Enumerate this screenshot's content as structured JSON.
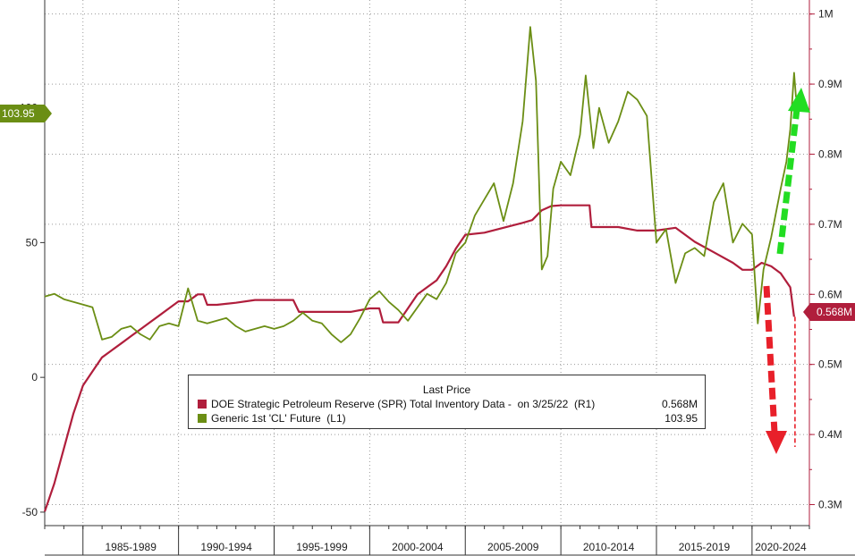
{
  "chart_data": {
    "type": "line",
    "title": "",
    "legend": {
      "title": "Last Price",
      "placement": "bottom-center",
      "entries": [
        {
          "name": "DOE Strategic Petroleum Reserve (SPR) Total Inventory Data -  on 3/25/22  (R1)",
          "value": "0.568M"
        },
        {
          "name": "Generic 1st 'CL' Future  (L1)",
          "value": "103.95"
        }
      ]
    },
    "x_ticks": [
      "1985-1989",
      "1990-1994",
      "1995-1999",
      "2000-2004",
      "2005-2009",
      "2010-2014",
      "2015-2019",
      "2020-2024"
    ],
    "x_range": [
      1983,
      2023
    ],
    "y_left": {
      "range": [
        -55,
        140
      ],
      "ticks": [
        -50,
        0,
        50,
        100
      ]
    },
    "y_right": {
      "range": [
        0.27,
        1.02
      ],
      "ticks": [
        "0.3M",
        "0.4M",
        "0.5M",
        "0.6M",
        "0.7M",
        "0.8M",
        "0.9M",
        "1M"
      ],
      "tick_values": [
        0.3,
        0.4,
        0.5,
        0.6,
        0.7,
        0.8,
        0.9,
        1.0
      ]
    },
    "grid": true,
    "series": [
      {
        "name": "DOE Strategic Petroleum Reserve (SPR) Total Inventory Data -  on 3/25/22  (R1)",
        "axis": "right",
        "color": "#b01e3c",
        "last_label": "0.568M",
        "points": [
          [
            1983.0,
            0.29
          ],
          [
            1983.5,
            0.33
          ],
          [
            1984.0,
            0.38
          ],
          [
            1984.5,
            0.43
          ],
          [
            1985.0,
            0.47
          ],
          [
            1985.5,
            0.49
          ],
          [
            1986.0,
            0.51
          ],
          [
            1986.5,
            0.52
          ],
          [
            1987.0,
            0.53
          ],
          [
            1987.5,
            0.54
          ],
          [
            1988.0,
            0.55
          ],
          [
            1988.5,
            0.56
          ],
          [
            1989.0,
            0.57
          ],
          [
            1989.5,
            0.58
          ],
          [
            1990.0,
            0.59
          ],
          [
            1990.5,
            0.59
          ],
          [
            1991.0,
            0.6
          ],
          [
            1991.3,
            0.6
          ],
          [
            1991.5,
            0.585
          ],
          [
            1992.0,
            0.585
          ],
          [
            1993.0,
            0.588
          ],
          [
            1994.0,
            0.592
          ],
          [
            1995.0,
            0.592
          ],
          [
            1996.0,
            0.592
          ],
          [
            1996.3,
            0.575
          ],
          [
            1997.0,
            0.575
          ],
          [
            1998.0,
            0.575
          ],
          [
            1999.0,
            0.575
          ],
          [
            2000.0,
            0.58
          ],
          [
            2000.5,
            0.58
          ],
          [
            2000.7,
            0.56
          ],
          [
            2001.5,
            0.56
          ],
          [
            2002.0,
            0.58
          ],
          [
            2002.5,
            0.6
          ],
          [
            2003.0,
            0.61
          ],
          [
            2003.5,
            0.62
          ],
          [
            2004.0,
            0.64
          ],
          [
            2004.5,
            0.665
          ],
          [
            2005.0,
            0.685
          ],
          [
            2006.0,
            0.688
          ],
          [
            2007.0,
            0.695
          ],
          [
            2008.0,
            0.702
          ],
          [
            2008.5,
            0.706
          ],
          [
            2009.0,
            0.72
          ],
          [
            2009.5,
            0.726
          ],
          [
            2010.0,
            0.727
          ],
          [
            2011.0,
            0.727
          ],
          [
            2011.5,
            0.727
          ],
          [
            2011.6,
            0.696
          ],
          [
            2013.0,
            0.696
          ],
          [
            2014.0,
            0.691
          ],
          [
            2015.0,
            0.691
          ],
          [
            2016.0,
            0.695
          ],
          [
            2017.0,
            0.675
          ],
          [
            2018.0,
            0.66
          ],
          [
            2019.0,
            0.645
          ],
          [
            2019.5,
            0.635
          ],
          [
            2020.0,
            0.635
          ],
          [
            2020.5,
            0.645
          ],
          [
            2021.0,
            0.64
          ],
          [
            2021.5,
            0.63
          ],
          [
            2022.0,
            0.61
          ],
          [
            2022.2,
            0.568
          ]
        ]
      },
      {
        "name": "Generic 1st 'CL' Future  (L1)",
        "axis": "left",
        "color": "#6b8e14",
        "last_label": "103.95",
        "points": [
          [
            1983.0,
            30
          ],
          [
            1983.5,
            31
          ],
          [
            1984.0,
            29
          ],
          [
            1984.5,
            28
          ],
          [
            1985.0,
            27
          ],
          [
            1985.5,
            26
          ],
          [
            1986.0,
            14
          ],
          [
            1986.5,
            15
          ],
          [
            1987.0,
            18
          ],
          [
            1987.5,
            19
          ],
          [
            1988.0,
            16
          ],
          [
            1988.5,
            14
          ],
          [
            1989.0,
            19
          ],
          [
            1989.5,
            20
          ],
          [
            1990.0,
            19
          ],
          [
            1990.5,
            33
          ],
          [
            1991.0,
            21
          ],
          [
            1991.5,
            20
          ],
          [
            1992.0,
            21
          ],
          [
            1992.5,
            22
          ],
          [
            1993.0,
            19
          ],
          [
            1993.5,
            17
          ],
          [
            1994.0,
            18
          ],
          [
            1994.5,
            19
          ],
          [
            1995.0,
            18
          ],
          [
            1995.5,
            19
          ],
          [
            1996.0,
            21
          ],
          [
            1996.5,
            24
          ],
          [
            1997.0,
            21
          ],
          [
            1997.5,
            20
          ],
          [
            1998.0,
            16
          ],
          [
            1998.5,
            13
          ],
          [
            1999.0,
            16
          ],
          [
            1999.5,
            22
          ],
          [
            2000.0,
            29
          ],
          [
            2000.5,
            32
          ],
          [
            2001.0,
            28
          ],
          [
            2001.5,
            25
          ],
          [
            2002.0,
            21
          ],
          [
            2002.5,
            26
          ],
          [
            2003.0,
            31
          ],
          [
            2003.5,
            29
          ],
          [
            2004.0,
            35
          ],
          [
            2004.5,
            46
          ],
          [
            2005.0,
            50
          ],
          [
            2005.5,
            60
          ],
          [
            2006.0,
            66
          ],
          [
            2006.5,
            72
          ],
          [
            2007.0,
            58
          ],
          [
            2007.5,
            72
          ],
          [
            2008.0,
            95
          ],
          [
            2008.4,
            130
          ],
          [
            2008.7,
            110
          ],
          [
            2009.0,
            40
          ],
          [
            2009.3,
            45
          ],
          [
            2009.6,
            70
          ],
          [
            2010.0,
            80
          ],
          [
            2010.5,
            75
          ],
          [
            2011.0,
            90
          ],
          [
            2011.3,
            112
          ],
          [
            2011.7,
            85
          ],
          [
            2012.0,
            100
          ],
          [
            2012.5,
            87
          ],
          [
            2013.0,
            95
          ],
          [
            2013.5,
            106
          ],
          [
            2014.0,
            103
          ],
          [
            2014.5,
            97
          ],
          [
            2015.0,
            50
          ],
          [
            2015.5,
            55
          ],
          [
            2016.0,
            35
          ],
          [
            2016.5,
            46
          ],
          [
            2017.0,
            48
          ],
          [
            2017.5,
            45
          ],
          [
            2018.0,
            65
          ],
          [
            2018.5,
            72
          ],
          [
            2019.0,
            50
          ],
          [
            2019.5,
            57
          ],
          [
            2020.0,
            53
          ],
          [
            2020.3,
            20
          ],
          [
            2020.6,
            40
          ],
          [
            2021.0,
            52
          ],
          [
            2021.5,
            70
          ],
          [
            2021.8,
            80
          ],
          [
            2022.0,
            92
          ],
          [
            2022.2,
            113
          ],
          [
            2022.3,
            103.95
          ]
        ]
      }
    ],
    "annotations": [
      {
        "type": "arrow",
        "color": "#22dd22",
        "direction": "up"
      },
      {
        "type": "arrow",
        "color": "#e8202a",
        "direction": "down"
      }
    ]
  }
}
